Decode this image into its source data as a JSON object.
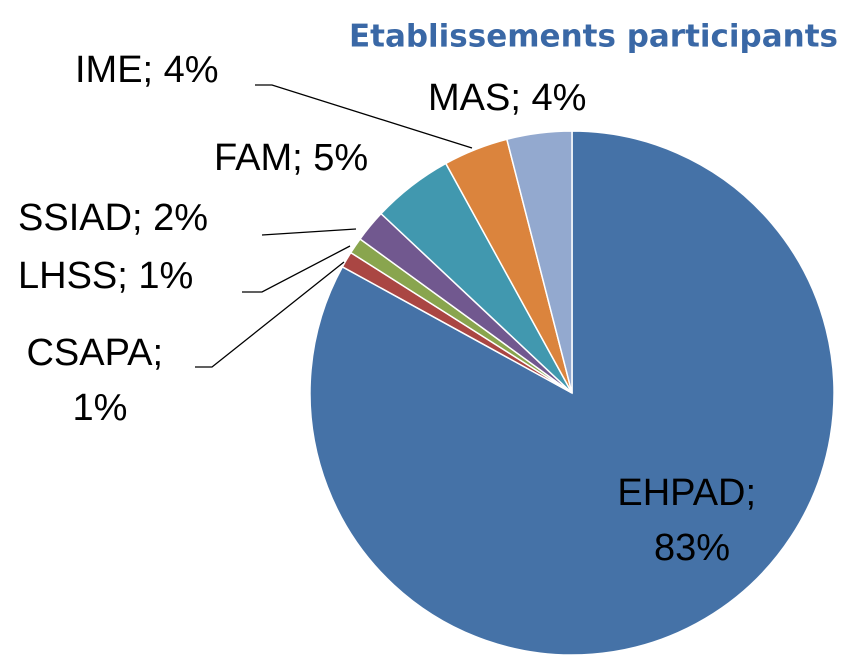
{
  "chart_data": {
    "type": "pie",
    "title": "Etablissements participants",
    "values": [
      83,
      1,
      1,
      2,
      5,
      4,
      4
    ],
    "value_labels": [
      "EHPAD; 83%",
      "CSAPA; 1%",
      "LHSS; 1%",
      "SSIAD; 2%",
      "FAM; 5%",
      "IME; 4%",
      "MAS; 4%"
    ],
    "colors": [
      "#4572a7",
      "#aa4643",
      "#89a54e",
      "#71588f",
      "#4198af",
      "#db843d",
      "#93a9cf"
    ]
  }
}
